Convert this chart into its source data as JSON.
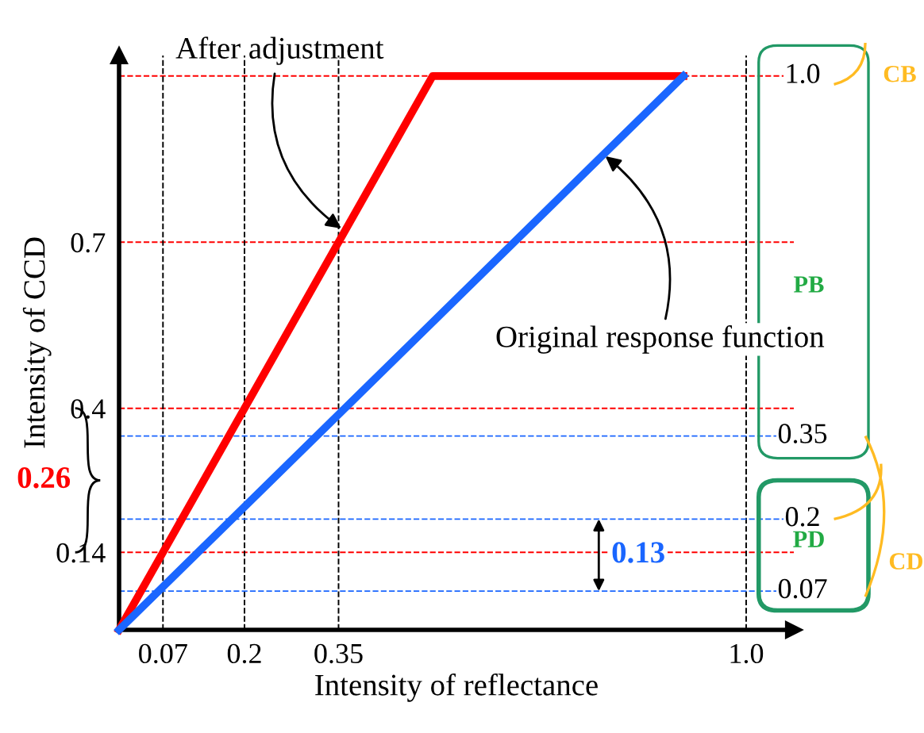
{
  "chart_data": {
    "type": "line",
    "xlabel": "Intensity of reflectance",
    "ylabel": "Intensity of CCD",
    "xlim": [
      0,
      1.076
    ],
    "ylim": [
      0,
      1.037
    ],
    "xticks": [
      0.07,
      0.2,
      0.35,
      {
        "value": 1.0,
        "label": "1.0"
      }
    ],
    "yticks": [
      0.14,
      0.4,
      0.7
    ],
    "series": [
      {
        "color": "#ff0000",
        "x": [
          0,
          0.5,
          0.9
        ],
        "values": [
          0,
          1.0,
          1.0
        ]
      },
      {
        "color": "#1a66ff",
        "x": [
          0,
          0.9
        ],
        "values": [
          0,
          1.0
        ]
      }
    ],
    "ref_lines": [
      {
        "axis": "y",
        "value": 1.0,
        "color": "#ff0000",
        "line_style": "dashed"
      },
      {
        "axis": "y",
        "value": 0.7,
        "color": "#ff0000",
        "line_style": "dashed"
      },
      {
        "axis": "y",
        "value": 0.4,
        "color": "#ff0000",
        "line_style": "dashed"
      },
      {
        "axis": "y",
        "value": 0.14,
        "color": "#ff0000",
        "line_style": "dashed"
      },
      {
        "axis": "x",
        "value": 0.07,
        "color": "#000000",
        "line_style": "dashed"
      },
      {
        "axis": "x",
        "value": 0.2,
        "color": "#000000",
        "line_style": "dashed"
      },
      {
        "axis": "x",
        "value": 0.35,
        "color": "#000000",
        "line_style": "dashed"
      },
      {
        "axis": "x",
        "value": 1.0,
        "color": "#000000",
        "line_style": "dashed"
      },
      {
        "axis": "y",
        "value": 0.35,
        "color": "#1a66ff",
        "line_style": "dashed"
      },
      {
        "axis": "y",
        "value": 0.2,
        "color": "#1a66ff",
        "line_style": "dashed"
      },
      {
        "axis": "y",
        "value": 0.07,
        "color": "#1a66ff",
        "line_style": "dashed"
      }
    ],
    "annotations": [
      {
        "text": "After adjustment",
        "x": 0.36,
        "y": 0.72
      },
      {
        "text": "Original response function",
        "x": 0.77,
        "y": 0.86
      },
      "0.26",
      "0.13",
      "1.0",
      "0.35",
      "0.2",
      "0.07",
      "PB",
      "PD",
      "CB",
      "CD"
    ],
    "grid": false,
    "legend": false,
    "marker": "none",
    "line_style": "solid"
  }
}
